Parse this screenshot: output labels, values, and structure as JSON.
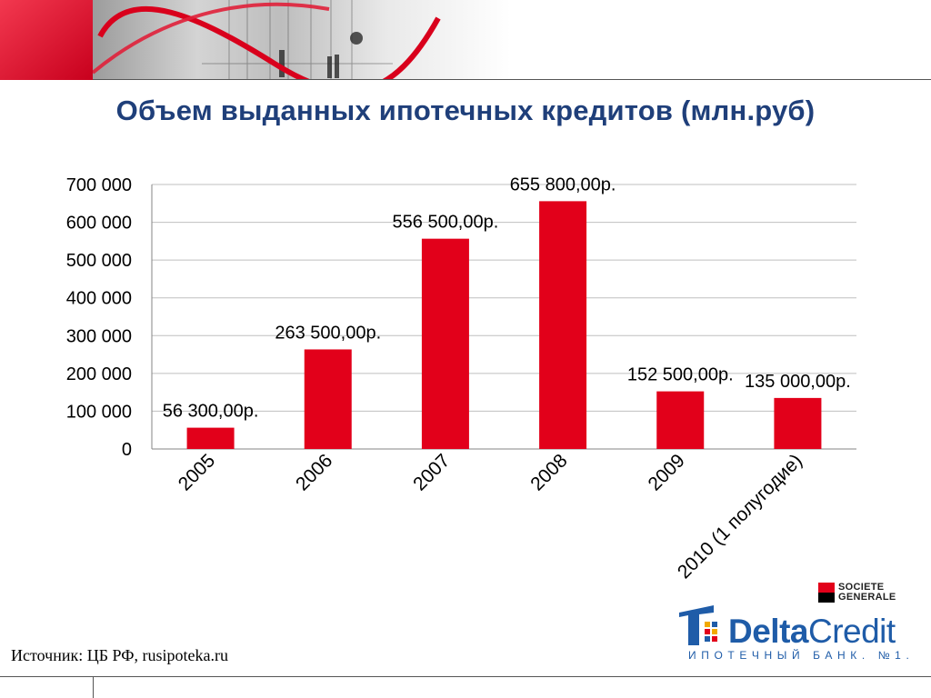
{
  "title": "Объем выданных ипотечных кредитов (млн.руб)",
  "source": "Источник: ЦБ РФ, rusipoteka.ru",
  "logos": {
    "societe_generale": [
      "SOCIETE",
      "GENERALE"
    ],
    "deltacredit_bold": "Delta",
    "deltacredit_thin": "Credit",
    "deltacredit_tagline": "ИПОТЕЧНЫЙ БАНК. №1."
  },
  "colors": {
    "bar": "#e2001a",
    "title": "#1f3f7a",
    "brand_blue": "#1f5ca8",
    "grid": "#bfbfbf"
  },
  "chart_data": {
    "type": "bar",
    "title": "",
    "xlabel": "",
    "ylabel": "",
    "categories": [
      "2005",
      "2006",
      "2007",
      "2008",
      "2009",
      "2010 (1 полугодие)"
    ],
    "values": [
      56300,
      263500,
      556500,
      655800,
      152500,
      135000
    ],
    "data_labels": [
      "56 300,00р.",
      "263 500,00р.",
      "556 500,00р.",
      "655 800,00р.",
      "152 500,00р.",
      "135 000,00р."
    ],
    "ylim": [
      0,
      700000
    ],
    "y_ticks": [
      0,
      100000,
      200000,
      300000,
      400000,
      500000,
      600000,
      700000
    ],
    "y_tick_labels": [
      "0",
      "100 000",
      "200 000",
      "300 000",
      "400 000",
      "500 000",
      "600 000",
      "700 000"
    ],
    "grid": true,
    "legend": "none"
  }
}
